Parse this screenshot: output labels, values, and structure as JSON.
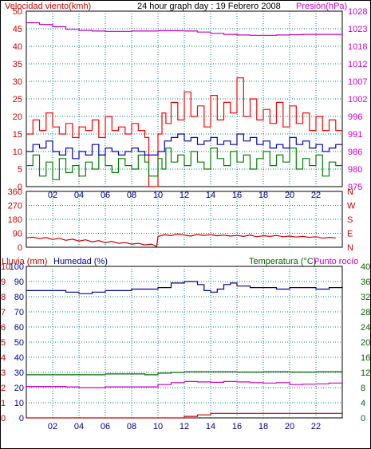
{
  "header": {
    "wind_speed_label": "Velocidad viento(kmh)",
    "title": "24 hour graph day : 19 Febrero 2008",
    "pressure_label": "Presión(hPa)"
  },
  "middle": {
    "direction_letters": [
      "N",
      "W",
      "S",
      "E",
      "N"
    ]
  },
  "bottom_header": {
    "rain_label": "Lluvia (mm)",
    "humidity_label": "Humedad (%)",
    "temperature_label": "Temperatura (°C)",
    "dewpoint_label": "Punto rocío"
  },
  "colors": {
    "wind_gust": "#ff0000",
    "wind_avg": "#008000",
    "wind_avg2": "#0000cc",
    "pressure": "#cc00cc",
    "grid": "#008080",
    "humidity": "#000099",
    "temperature": "#006600",
    "dewpoint": "#cc00cc",
    "rain": "#cc0000"
  },
  "chart_data": [
    {
      "type": "line",
      "title": "24 hour graph day : 19 Febrero 2008",
      "x_ticks": [
        "02",
        "04",
        "06",
        "08",
        "10",
        "12",
        "14",
        "16",
        "18",
        "20",
        "22"
      ],
      "x_range_hours": [
        0,
        24
      ],
      "left_axis": {
        "label": "Velocidad viento(kmh)",
        "ylim": [
          0,
          50
        ],
        "ticks": [
          0,
          5,
          10,
          15,
          20,
          25,
          30,
          35,
          40,
          45,
          50
        ]
      },
      "right_axis": {
        "label": "Presión(hPa)",
        "ylim": [
          975,
          1028
        ],
        "ticks": [
          975,
          980,
          986,
          991,
          996,
          1002,
          1007,
          1012,
          1018,
          1023,
          1028
        ]
      },
      "grid": true,
      "series": [
        {
          "name": "Velocidad viento(kmh)",
          "axis": "left",
          "color": "#ff0000",
          "x": [
            0,
            0.5,
            1,
            1.5,
            2,
            2.5,
            3,
            3.5,
            4,
            4.5,
            5,
            5.5,
            6,
            6.5,
            7,
            7.5,
            8,
            8.5,
            9,
            9.3,
            9.6,
            10,
            10.3,
            10.6,
            11,
            11.5,
            12,
            12.5,
            13,
            13.5,
            14,
            14.5,
            15,
            15.5,
            16,
            16.5,
            17,
            17.5,
            18,
            18.5,
            19,
            19.5,
            20,
            20.5,
            21,
            21.5,
            22,
            22.5,
            23,
            23.5
          ],
          "y": [
            15,
            19,
            16,
            21,
            17,
            15,
            18,
            14,
            17,
            16,
            19,
            14,
            20,
            16,
            17,
            15,
            18,
            16,
            14,
            0,
            0,
            15,
            21,
            18,
            24,
            19,
            27,
            20,
            23,
            17,
            26,
            19,
            24,
            21,
            31,
            20,
            25,
            19,
            22,
            18,
            24,
            17,
            23,
            18,
            21,
            16,
            20,
            16,
            19,
            16
          ]
        },
        {
          "name": "",
          "axis": "left",
          "color": "#008000",
          "x": [
            0,
            0.5,
            1,
            1.5,
            2,
            2.5,
            3,
            3.5,
            4,
            4.5,
            5,
            5.5,
            6,
            6.5,
            7,
            7.5,
            8,
            8.5,
            9,
            9.3,
            9.6,
            10,
            10.3,
            10.6,
            11,
            11.5,
            12,
            12.5,
            13,
            13.5,
            14,
            14.5,
            15,
            15.5,
            16,
            16.5,
            17,
            17.5,
            18,
            18.5,
            19,
            19.5,
            20,
            20.5,
            21,
            21.5,
            22,
            22.5,
            23,
            23.5
          ],
          "y": [
            6,
            9,
            3,
            7,
            2,
            8,
            4,
            6,
            3,
            7,
            5,
            9,
            6,
            4,
            8,
            6,
            5,
            9,
            7,
            3,
            3,
            8,
            5,
            11,
            7,
            9,
            6,
            10,
            7,
            5,
            11,
            8,
            6,
            10,
            7,
            9,
            5,
            8,
            10,
            6,
            9,
            7,
            11,
            5,
            8,
            6,
            9,
            3,
            7,
            6
          ]
        },
        {
          "name": "",
          "axis": "left",
          "color": "#0000cc",
          "x": [
            0,
            0.5,
            1,
            1.5,
            2,
            2.5,
            3,
            3.5,
            4,
            4.5,
            5,
            5.5,
            6,
            6.5,
            7,
            7.5,
            8,
            8.5,
            9,
            9.5,
            10,
            10.5,
            11,
            11.5,
            12,
            12.5,
            13,
            13.5,
            14,
            14.5,
            15,
            15.5,
            16,
            16.5,
            17,
            17.5,
            18,
            18.5,
            19,
            19.5,
            20,
            20.5,
            21,
            21.5,
            22,
            22.5,
            23,
            23.5
          ],
          "y": [
            10,
            12,
            11,
            13,
            10,
            9,
            11,
            8,
            10,
            9,
            12,
            9,
            11,
            10,
            9,
            10,
            11,
            10,
            9,
            9,
            10,
            13,
            14,
            15,
            13,
            14,
            12,
            13,
            14,
            12,
            13,
            12,
            15,
            13,
            14,
            12,
            13,
            11,
            12,
            11,
            14,
            12,
            13,
            11,
            12,
            10,
            11,
            12
          ]
        },
        {
          "name": "Presión(hPa)",
          "axis": "right",
          "color": "#cc00cc",
          "x": [
            0,
            1,
            2,
            3,
            4,
            5,
            6,
            7,
            8,
            9,
            10,
            11,
            12,
            13,
            14,
            15,
            16,
            17,
            18,
            19,
            20,
            21,
            22,
            23,
            24
          ],
          "y": [
            1024.5,
            1024,
            1023.3,
            1022.5,
            1022.2,
            1022,
            1021.9,
            1021.9,
            1022,
            1022,
            1022.1,
            1022.1,
            1022,
            1021.7,
            1021.3,
            1021,
            1020.8,
            1020.7,
            1020.7,
            1020.8,
            1020.9,
            1021,
            1021,
            1021,
            1020.9
          ]
        }
      ]
    },
    {
      "type": "line",
      "x_range_hours": [
        0,
        24
      ],
      "left_axis": {
        "label": "",
        "ylim": [
          0,
          360
        ],
        "ticks": [
          0,
          90,
          180,
          270,
          360
        ]
      },
      "right_axis": {
        "label": "",
        "ticks": [
          "N",
          "W",
          "S",
          "E",
          "N"
        ]
      },
      "grid": true,
      "series": [
        {
          "name": "",
          "color": "#cc0000",
          "x": [
            0,
            0.5,
            1,
            1.5,
            2,
            2.5,
            3,
            3.5,
            4,
            4.5,
            5,
            5.5,
            6,
            6.5,
            7,
            7.5,
            8,
            8.5,
            9,
            9.5,
            9.9,
            10,
            10.5,
            11,
            11.5,
            12,
            12.5,
            13,
            13.5,
            14,
            14.5,
            15,
            15.5,
            16,
            16.5,
            17,
            17.5,
            18,
            18.5,
            19,
            19.5,
            20,
            20.5,
            21,
            21.5,
            22,
            22.5,
            23,
            23.5
          ],
          "y": [
            60,
            65,
            55,
            62,
            50,
            58,
            45,
            52,
            40,
            48,
            35,
            42,
            30,
            38,
            25,
            30,
            20,
            25,
            15,
            20,
            5,
            70,
            80,
            75,
            85,
            78,
            72,
            82,
            76,
            80,
            74,
            78,
            72,
            76,
            70,
            78,
            68,
            74,
            70,
            76,
            68,
            72,
            66,
            70,
            64,
            68,
            58,
            64,
            60
          ]
        }
      ]
    },
    {
      "type": "line",
      "x_ticks": [
        "02",
        "04",
        "06",
        "08",
        "10",
        "12",
        "14",
        "16",
        "18",
        "20",
        "22"
      ],
      "x_range_hours": [
        0,
        24
      ],
      "left_axis_rain": {
        "label": "Lluvia (mm)",
        "ticks": [
          0,
          1,
          2,
          3,
          4,
          5,
          6,
          7,
          8,
          9,
          10
        ]
      },
      "left_axis_humidity": {
        "label": "Humedad (%)",
        "ylim": [
          0,
          100
        ],
        "ticks": [
          0,
          10,
          20,
          30,
          40,
          50,
          60,
          70,
          80,
          90,
          100
        ]
      },
      "right_axis": {
        "label": "Temperatura (°C)",
        "ylim": [
          0,
          40
        ],
        "ticks": [
          0,
          4,
          8,
          12,
          16,
          20,
          24,
          28,
          32,
          36,
          40
        ]
      },
      "grid": true,
      "series": [
        {
          "name": "Humedad (%)",
          "axis": "humidity",
          "color": "#000099",
          "x": [
            0,
            1,
            2,
            3,
            4,
            5,
            6,
            7,
            8,
            9,
            10,
            11,
            12,
            13,
            13.5,
            14,
            14.5,
            15,
            15.5,
            16,
            17,
            18,
            19,
            20,
            21,
            22,
            23,
            24
          ],
          "y": [
            84,
            84,
            84,
            83,
            82,
            83,
            84,
            84,
            85,
            85,
            86,
            89,
            90,
            88,
            84,
            83,
            85,
            88,
            89,
            87,
            86,
            86,
            85,
            86,
            86,
            85,
            86,
            87
          ]
        },
        {
          "name": "Temperatura (°C)",
          "axis": "temperature",
          "color": "#006600",
          "x": [
            0,
            2,
            4,
            6,
            8,
            9,
            10,
            11,
            12,
            14,
            16,
            18,
            20,
            22,
            24
          ],
          "y": [
            11.4,
            11.4,
            11.4,
            11.6,
            11.6,
            11.4,
            11.8,
            12,
            12.2,
            12.2,
            12.1,
            12.2,
            12.1,
            12.2,
            12.2
          ]
        },
        {
          "name": "Punto rocío",
          "axis": "temperature",
          "color": "#cc00cc",
          "x": [
            0,
            1,
            2,
            3,
            4,
            5,
            6,
            7,
            8,
            9,
            10,
            11,
            12,
            13,
            14,
            15,
            16,
            17,
            18,
            19,
            20,
            21,
            22,
            23,
            24
          ],
          "y": [
            8.3,
            8.3,
            8.3,
            8.2,
            8,
            8,
            8.2,
            8.2,
            8.2,
            8.2,
            8.8,
            9.3,
            9.6,
            9.5,
            9.4,
            9.6,
            9.5,
            9.3,
            9.2,
            9.3,
            8.8,
            8.9,
            9.0,
            9.2,
            9.2
          ]
        },
        {
          "name": "Lluvia (mm)",
          "axis": "rain",
          "color": "#cc0000",
          "x": [
            0,
            8,
            9,
            10,
            12,
            13,
            14,
            15,
            16,
            18,
            20,
            22,
            24
          ],
          "y": [
            0,
            0,
            0,
            0,
            0.1,
            0.2,
            0.3,
            0.3,
            0.3,
            0.3,
            0.3,
            0.3,
            0.3
          ]
        }
      ]
    }
  ]
}
